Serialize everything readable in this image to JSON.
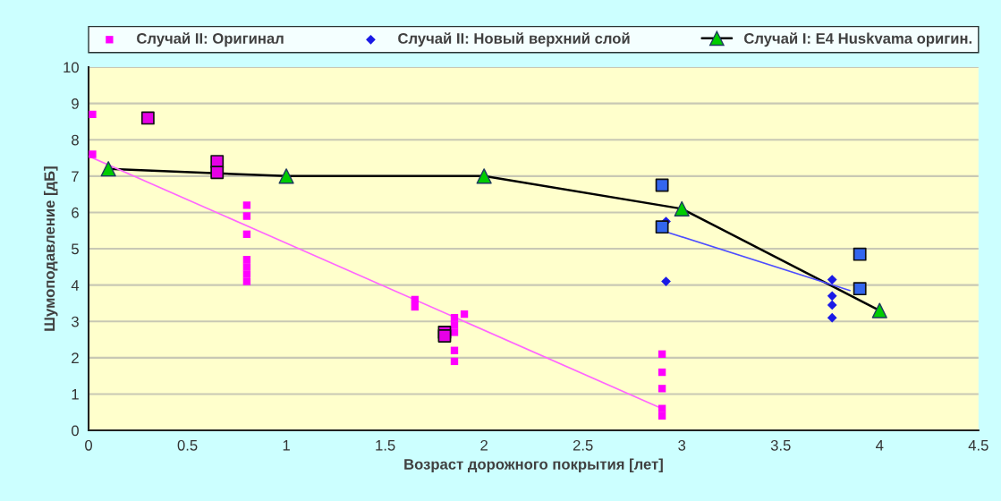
{
  "chart_data": {
    "type": "scatter",
    "xlabel": "Возраст дорожного покрытия [лет]",
    "ylabel": "Шумоподавление [дБ]",
    "xlim": [
      0,
      4.5
    ],
    "xticks": [
      0,
      0.5,
      1,
      1.5,
      2,
      2.5,
      3,
      3.5,
      4,
      4.5
    ],
    "ylim": [
      0,
      10
    ],
    "yticks": [
      0,
      1,
      2,
      3,
      4,
      5,
      6,
      7,
      8,
      9,
      10
    ],
    "grid": "y",
    "legend": "top",
    "series": [
      {
        "name": "Случай II: Оригинал",
        "marker": "square",
        "color": "#ff00ff",
        "x": [
          0.02,
          0.02,
          0.8,
          0.8,
          0.8,
          0.8,
          0.8,
          0.8,
          0.8,
          1.65,
          1.65,
          1.85,
          1.85,
          1.85,
          1.85,
          1.85,
          1.9,
          2.9,
          2.9,
          2.9,
          2.9,
          2.9
        ],
        "values": [
          8.7,
          7.6,
          6.2,
          5.9,
          5.4,
          4.7,
          4.5,
          4.3,
          4.1,
          3.6,
          3.4,
          3.1,
          2.9,
          2.7,
          2.2,
          1.9,
          3.2,
          2.1,
          1.6,
          1.15,
          0.6,
          0.4
        ]
      },
      {
        "name": "Случай II: Новый верхний слой",
        "marker": "diamond",
        "color": "#1a1ae6",
        "x": [
          2.92,
          2.92,
          3.76,
          3.76,
          3.76,
          3.76
        ],
        "values": [
          5.75,
          4.1,
          4.15,
          3.7,
          3.45,
          3.1
        ]
      },
      {
        "name": "Случай I: E4 Huskvama оригин.",
        "type": "line",
        "marker": "triangle",
        "color": "#000000",
        "colors": [
          "#00cc00",
          "#00cc00",
          "#00cc00",
          "#00cc00",
          "#00cc00"
        ],
        "x": [
          0.1,
          1,
          2,
          3,
          4
        ],
        "values": [
          7.2,
          7.0,
          7.0,
          6.1,
          3.3
        ]
      },
      {
        "marker": "square",
        "color": "#e600e6",
        "x": [
          0.3,
          0.65,
          0.65,
          1.8,
          1.8
        ],
        "values": [
          8.6,
          7.4,
          7.1,
          2.7,
          2.6
        ]
      },
      {
        "marker": "square",
        "color": "#3366ee",
        "x": [
          2.9,
          2.9,
          3.9,
          3.9
        ],
        "values": [
          6.75,
          5.6,
          4.85,
          3.9
        ]
      },
      {
        "type": "line",
        "marker": "none",
        "color": "#ff66ff",
        "x": [
          0,
          2.9
        ],
        "values": [
          7.55,
          0.6
        ]
      },
      {
        "type": "line",
        "marker": "none",
        "color": "#4d4dff",
        "x": [
          2.9,
          3.85
        ],
        "values": [
          5.5,
          3.85
        ]
      }
    ]
  }
}
